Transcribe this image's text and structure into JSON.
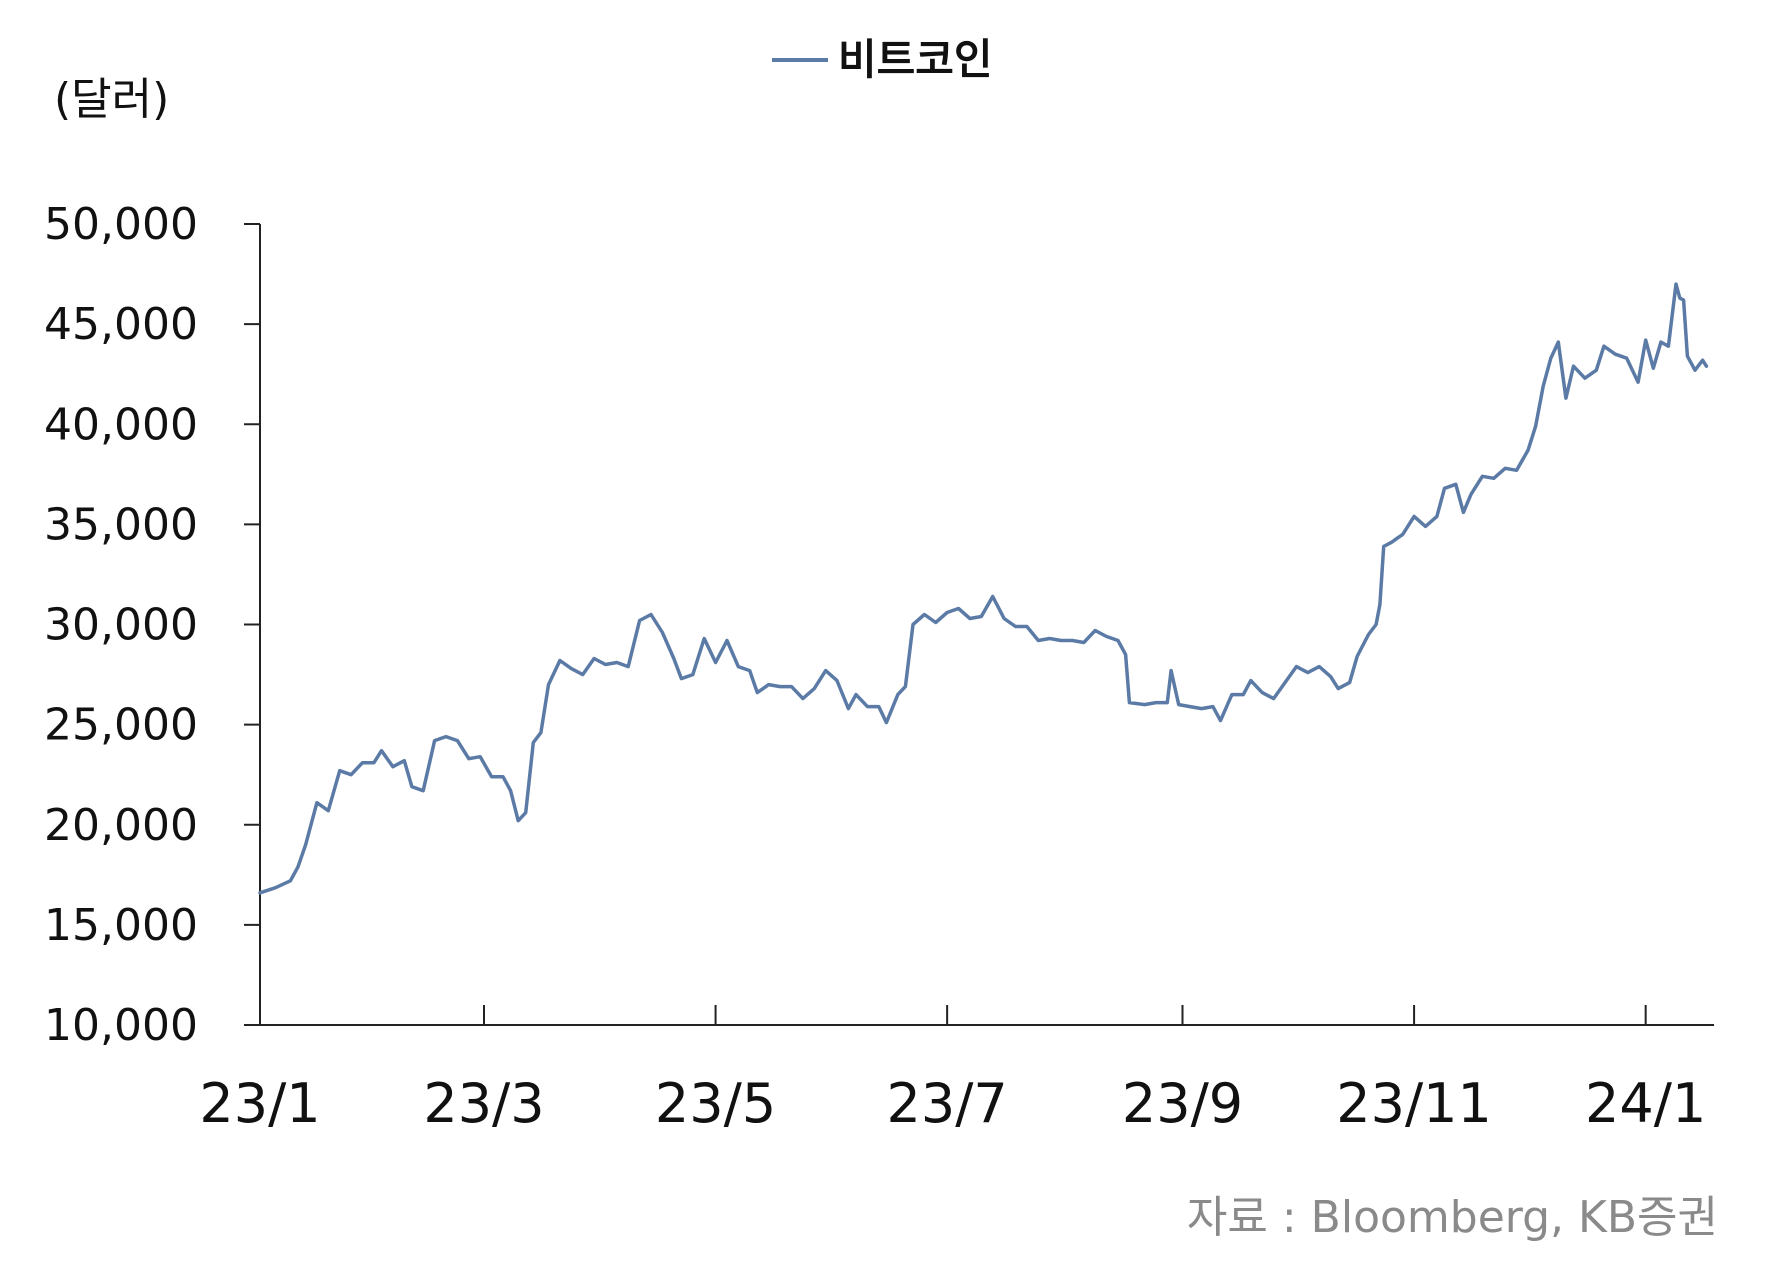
{
  "chart_data": {
    "type": "line",
    "title": "",
    "ylabel": "(달러)",
    "xlabel": "",
    "ylim": [
      10000,
      50000
    ],
    "yticks": [
      10000,
      15000,
      20000,
      25000,
      30000,
      35000,
      40000,
      45000,
      50000
    ],
    "ytick_labels": [
      "10,000",
      "15,000",
      "20,000",
      "25,000",
      "30,000",
      "35,000",
      "40,000",
      "45,000",
      "50,000"
    ],
    "xlim": [
      "2023-01-01",
      "2024-01-19"
    ],
    "xticks": [
      "2023-01-01",
      "2023-03-01",
      "2023-05-01",
      "2023-07-01",
      "2023-09-01",
      "2023-11-01",
      "2024-01-01"
    ],
    "xtick_labels": [
      "23/1",
      "23/3",
      "23/5",
      "23/7",
      "23/9",
      "23/11",
      "24/1"
    ],
    "legend_position": "top-center",
    "grid": false,
    "source": "자료 : Bloomberg, KB증권",
    "series": [
      {
        "name": "비트코인",
        "color": "#5B7BA6",
        "points": [
          [
            "2023-01-01",
            16600
          ],
          [
            "2023-01-05",
            16850
          ],
          [
            "2023-01-09",
            17200
          ],
          [
            "2023-01-11",
            17900
          ],
          [
            "2023-01-13",
            19000
          ],
          [
            "2023-01-16",
            21100
          ],
          [
            "2023-01-19",
            20700
          ],
          [
            "2023-01-22",
            22700
          ],
          [
            "2023-01-25",
            22500
          ],
          [
            "2023-01-28",
            23100
          ],
          [
            "2023-01-31",
            23100
          ],
          [
            "2023-02-02",
            23700
          ],
          [
            "2023-02-05",
            22900
          ],
          [
            "2023-02-08",
            23200
          ],
          [
            "2023-02-10",
            21900
          ],
          [
            "2023-02-13",
            21700
          ],
          [
            "2023-02-16",
            24200
          ],
          [
            "2023-02-19",
            24400
          ],
          [
            "2023-02-22",
            24200
          ],
          [
            "2023-02-25",
            23300
          ],
          [
            "2023-02-28",
            23400
          ],
          [
            "2023-03-03",
            22400
          ],
          [
            "2023-03-06",
            22400
          ],
          [
            "2023-03-08",
            21700
          ],
          [
            "2023-03-10",
            20200
          ],
          [
            "2023-03-12",
            20600
          ],
          [
            "2023-03-14",
            24100
          ],
          [
            "2023-03-16",
            24600
          ],
          [
            "2023-03-18",
            27000
          ],
          [
            "2023-03-21",
            28200
          ],
          [
            "2023-03-24",
            27800
          ],
          [
            "2023-03-27",
            27500
          ],
          [
            "2023-03-30",
            28300
          ],
          [
            "2023-04-02",
            28000
          ],
          [
            "2023-04-05",
            28100
          ],
          [
            "2023-04-08",
            27900
          ],
          [
            "2023-04-11",
            30200
          ],
          [
            "2023-04-14",
            30500
          ],
          [
            "2023-04-17",
            29600
          ],
          [
            "2023-04-20",
            28300
          ],
          [
            "2023-04-22",
            27300
          ],
          [
            "2023-04-25",
            27500
          ],
          [
            "2023-04-28",
            29300
          ],
          [
            "2023-05-01",
            28100
          ],
          [
            "2023-05-04",
            29200
          ],
          [
            "2023-05-07",
            27900
          ],
          [
            "2023-05-10",
            27700
          ],
          [
            "2023-05-12",
            26600
          ],
          [
            "2023-05-15",
            27000
          ],
          [
            "2023-05-18",
            26900
          ],
          [
            "2023-05-21",
            26900
          ],
          [
            "2023-05-24",
            26300
          ],
          [
            "2023-05-27",
            26800
          ],
          [
            "2023-05-30",
            27700
          ],
          [
            "2023-06-02",
            27200
          ],
          [
            "2023-06-05",
            25800
          ],
          [
            "2023-06-07",
            26500
          ],
          [
            "2023-06-10",
            25900
          ],
          [
            "2023-06-13",
            25900
          ],
          [
            "2023-06-15",
            25100
          ],
          [
            "2023-06-18",
            26500
          ],
          [
            "2023-06-20",
            26900
          ],
          [
            "2023-06-22",
            30000
          ],
          [
            "2023-06-25",
            30500
          ],
          [
            "2023-06-28",
            30100
          ],
          [
            "2023-07-01",
            30600
          ],
          [
            "2023-07-04",
            30800
          ],
          [
            "2023-07-07",
            30300
          ],
          [
            "2023-07-10",
            30400
          ],
          [
            "2023-07-13",
            31400
          ],
          [
            "2023-07-16",
            30300
          ],
          [
            "2023-07-19",
            29900
          ],
          [
            "2023-07-22",
            29900
          ],
          [
            "2023-07-25",
            29200
          ],
          [
            "2023-07-28",
            29300
          ],
          [
            "2023-07-31",
            29200
          ],
          [
            "2023-08-03",
            29200
          ],
          [
            "2023-08-06",
            29100
          ],
          [
            "2023-08-09",
            29700
          ],
          [
            "2023-08-12",
            29400
          ],
          [
            "2023-08-15",
            29200
          ],
          [
            "2023-08-17",
            28500
          ],
          [
            "2023-08-18",
            26100
          ],
          [
            "2023-08-22",
            26000
          ],
          [
            "2023-08-25",
            26100
          ],
          [
            "2023-08-28",
            26100
          ],
          [
            "2023-08-29",
            27700
          ],
          [
            "2023-08-31",
            26000
          ],
          [
            "2023-09-03",
            25900
          ],
          [
            "2023-09-06",
            25800
          ],
          [
            "2023-09-09",
            25900
          ],
          [
            "2023-09-11",
            25200
          ],
          [
            "2023-09-14",
            26500
          ],
          [
            "2023-09-17",
            26500
          ],
          [
            "2023-09-19",
            27200
          ],
          [
            "2023-09-22",
            26600
          ],
          [
            "2023-09-25",
            26300
          ],
          [
            "2023-09-28",
            27100
          ],
          [
            "2023-10-01",
            27900
          ],
          [
            "2023-10-04",
            27600
          ],
          [
            "2023-10-07",
            27900
          ],
          [
            "2023-10-10",
            27400
          ],
          [
            "2023-10-12",
            26800
          ],
          [
            "2023-10-15",
            27100
          ],
          [
            "2023-10-17",
            28400
          ],
          [
            "2023-10-20",
            29500
          ],
          [
            "2023-10-22",
            30000
          ],
          [
            "2023-10-23",
            31000
          ],
          [
            "2023-10-24",
            33900
          ],
          [
            "2023-10-26",
            34100
          ],
          [
            "2023-10-29",
            34500
          ],
          [
            "2023-11-01",
            35400
          ],
          [
            "2023-11-04",
            34900
          ],
          [
            "2023-11-07",
            35400
          ],
          [
            "2023-11-09",
            36800
          ],
          [
            "2023-11-12",
            37000
          ],
          [
            "2023-11-14",
            35600
          ],
          [
            "2023-11-16",
            36500
          ],
          [
            "2023-11-19",
            37400
          ],
          [
            "2023-11-22",
            37300
          ],
          [
            "2023-11-25",
            37800
          ],
          [
            "2023-11-28",
            37700
          ],
          [
            "2023-12-01",
            38700
          ],
          [
            "2023-12-03",
            39900
          ],
          [
            "2023-12-05",
            41900
          ],
          [
            "2023-12-07",
            43300
          ],
          [
            "2023-12-09",
            44100
          ],
          [
            "2023-12-11",
            41300
          ],
          [
            "2023-12-13",
            42900
          ],
          [
            "2023-12-16",
            42300
          ],
          [
            "2023-12-19",
            42700
          ],
          [
            "2023-12-21",
            43900
          ],
          [
            "2023-12-24",
            43500
          ],
          [
            "2023-12-27",
            43300
          ],
          [
            "2023-12-30",
            42100
          ],
          [
            "2024-01-01",
            44200
          ],
          [
            "2024-01-03",
            42800
          ],
          [
            "2024-01-05",
            44100
          ],
          [
            "2024-01-07",
            43900
          ],
          [
            "2024-01-09",
            47000
          ],
          [
            "2024-01-10",
            46300
          ],
          [
            "2024-01-11",
            46200
          ],
          [
            "2024-01-12",
            43400
          ],
          [
            "2024-01-14",
            42700
          ],
          [
            "2024-01-16",
            43200
          ],
          [
            "2024-01-17",
            42900
          ]
        ]
      }
    ]
  }
}
